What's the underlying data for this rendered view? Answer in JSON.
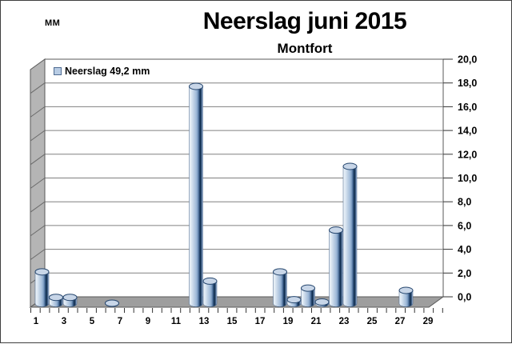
{
  "header": {
    "unit_label": "MM",
    "title": "Neerslag juni 2015",
    "subtitle": "Montfort"
  },
  "legend": {
    "label": "Neerslag 49,2 mm",
    "swatch_color": "#b8cce4"
  },
  "chart_data": {
    "type": "bar",
    "style": "3d-cylinder",
    "title": "Neerslag juni 2015",
    "subtitle": "Montfort",
    "unit": "mm",
    "total_mm": 49.2,
    "legend": [
      "Neerslag 49,2 mm"
    ],
    "legend_position": "top-left-inside",
    "grid": true,
    "x": [
      1,
      2,
      3,
      4,
      5,
      6,
      7,
      8,
      9,
      10,
      11,
      12,
      13,
      14,
      15,
      16,
      17,
      18,
      19,
      20,
      21,
      22,
      23,
      24,
      25,
      26,
      27,
      28,
      29,
      30
    ],
    "values": [
      2.8,
      0.6,
      0.6,
      0,
      0,
      0.1,
      0,
      0,
      0,
      0,
      0,
      18.8,
      2.0,
      0,
      0,
      0,
      0,
      2.8,
      0.4,
      1.4,
      0.2,
      6.4,
      11.9,
      0,
      0,
      0,
      1.2,
      0,
      0,
      0
    ],
    "xticklabels": [
      "1",
      "3",
      "5",
      "7",
      "9",
      "11",
      "13",
      "15",
      "17",
      "19",
      "21",
      "23",
      "25",
      "27",
      "29"
    ],
    "yticklabels": [
      "0,0",
      "2,0",
      "4,0",
      "6,0",
      "8,0",
      "10,0",
      "12,0",
      "14,0",
      "16,0",
      "18,0",
      "20,0"
    ],
    "ylim": [
      0,
      20
    ],
    "ytick_step": 2,
    "colors": {
      "bar_light": "#dde8f3",
      "bar_mid": "#b8cce4",
      "bar_dark": "#17375e",
      "wall": "#b5b5b5",
      "floor": "#9e9e9e",
      "gridline": "#808080"
    }
  }
}
